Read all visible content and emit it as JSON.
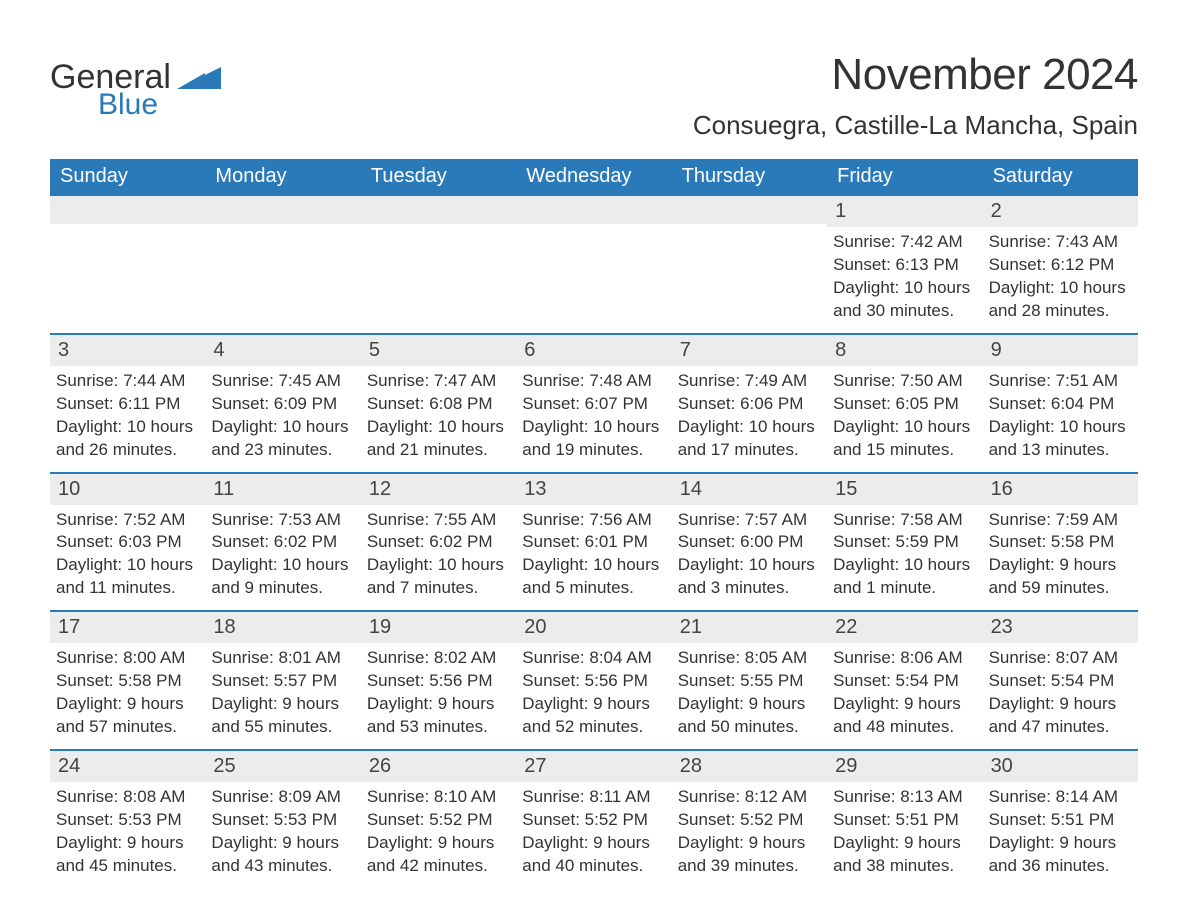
{
  "colors": {
    "header_bg": "#2a7ab9",
    "header_text": "#ffffff",
    "daynum_bg": "#ececec",
    "body_text": "#333333",
    "row_border": "#2a7ab9",
    "logo_blue": "#2a7ab9"
  },
  "logo": {
    "word1": "General",
    "word2": "Blue"
  },
  "title": "November 2024",
  "location": "Consuegra, Castille-La Mancha, Spain",
  "days_of_week": [
    "Sunday",
    "Monday",
    "Tuesday",
    "Wednesday",
    "Thursday",
    "Friday",
    "Saturday"
  ],
  "labels": {
    "sunrise": "Sunrise:",
    "sunset": "Sunset:",
    "daylight": "Daylight:"
  },
  "weeks": [
    [
      null,
      null,
      null,
      null,
      null,
      {
        "n": "1",
        "sunrise": "7:42 AM",
        "sunset": "6:13 PM",
        "daylight": "10 hours and 30 minutes."
      },
      {
        "n": "2",
        "sunrise": "7:43 AM",
        "sunset": "6:12 PM",
        "daylight": "10 hours and 28 minutes."
      }
    ],
    [
      {
        "n": "3",
        "sunrise": "7:44 AM",
        "sunset": "6:11 PM",
        "daylight": "10 hours and 26 minutes."
      },
      {
        "n": "4",
        "sunrise": "7:45 AM",
        "sunset": "6:09 PM",
        "daylight": "10 hours and 23 minutes."
      },
      {
        "n": "5",
        "sunrise": "7:47 AM",
        "sunset": "6:08 PM",
        "daylight": "10 hours and 21 minutes."
      },
      {
        "n": "6",
        "sunrise": "7:48 AM",
        "sunset": "6:07 PM",
        "daylight": "10 hours and 19 minutes."
      },
      {
        "n": "7",
        "sunrise": "7:49 AM",
        "sunset": "6:06 PM",
        "daylight": "10 hours and 17 minutes."
      },
      {
        "n": "8",
        "sunrise": "7:50 AM",
        "sunset": "6:05 PM",
        "daylight": "10 hours and 15 minutes."
      },
      {
        "n": "9",
        "sunrise": "7:51 AM",
        "sunset": "6:04 PM",
        "daylight": "10 hours and 13 minutes."
      }
    ],
    [
      {
        "n": "10",
        "sunrise": "7:52 AM",
        "sunset": "6:03 PM",
        "daylight": "10 hours and 11 minutes."
      },
      {
        "n": "11",
        "sunrise": "7:53 AM",
        "sunset": "6:02 PM",
        "daylight": "10 hours and 9 minutes."
      },
      {
        "n": "12",
        "sunrise": "7:55 AM",
        "sunset": "6:02 PM",
        "daylight": "10 hours and 7 minutes."
      },
      {
        "n": "13",
        "sunrise": "7:56 AM",
        "sunset": "6:01 PM",
        "daylight": "10 hours and 5 minutes."
      },
      {
        "n": "14",
        "sunrise": "7:57 AM",
        "sunset": "6:00 PM",
        "daylight": "10 hours and 3 minutes."
      },
      {
        "n": "15",
        "sunrise": "7:58 AM",
        "sunset": "5:59 PM",
        "daylight": "10 hours and 1 minute."
      },
      {
        "n": "16",
        "sunrise": "7:59 AM",
        "sunset": "5:58 PM",
        "daylight": "9 hours and 59 minutes."
      }
    ],
    [
      {
        "n": "17",
        "sunrise": "8:00 AM",
        "sunset": "5:58 PM",
        "daylight": "9 hours and 57 minutes."
      },
      {
        "n": "18",
        "sunrise": "8:01 AM",
        "sunset": "5:57 PM",
        "daylight": "9 hours and 55 minutes."
      },
      {
        "n": "19",
        "sunrise": "8:02 AM",
        "sunset": "5:56 PM",
        "daylight": "9 hours and 53 minutes."
      },
      {
        "n": "20",
        "sunrise": "8:04 AM",
        "sunset": "5:56 PM",
        "daylight": "9 hours and 52 minutes."
      },
      {
        "n": "21",
        "sunrise": "8:05 AM",
        "sunset": "5:55 PM",
        "daylight": "9 hours and 50 minutes."
      },
      {
        "n": "22",
        "sunrise": "8:06 AM",
        "sunset": "5:54 PM",
        "daylight": "9 hours and 48 minutes."
      },
      {
        "n": "23",
        "sunrise": "8:07 AM",
        "sunset": "5:54 PM",
        "daylight": "9 hours and 47 minutes."
      }
    ],
    [
      {
        "n": "24",
        "sunrise": "8:08 AM",
        "sunset": "5:53 PM",
        "daylight": "9 hours and 45 minutes."
      },
      {
        "n": "25",
        "sunrise": "8:09 AM",
        "sunset": "5:53 PM",
        "daylight": "9 hours and 43 minutes."
      },
      {
        "n": "26",
        "sunrise": "8:10 AM",
        "sunset": "5:52 PM",
        "daylight": "9 hours and 42 minutes."
      },
      {
        "n": "27",
        "sunrise": "8:11 AM",
        "sunset": "5:52 PM",
        "daylight": "9 hours and 40 minutes."
      },
      {
        "n": "28",
        "sunrise": "8:12 AM",
        "sunset": "5:52 PM",
        "daylight": "9 hours and 39 minutes."
      },
      {
        "n": "29",
        "sunrise": "8:13 AM",
        "sunset": "5:51 PM",
        "daylight": "9 hours and 38 minutes."
      },
      {
        "n": "30",
        "sunrise": "8:14 AM",
        "sunset": "5:51 PM",
        "daylight": "9 hours and 36 minutes."
      }
    ]
  ]
}
